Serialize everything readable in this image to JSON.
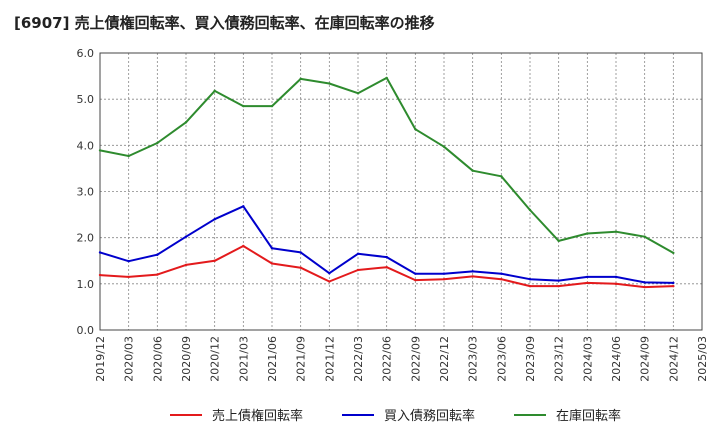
{
  "chart_data": {
    "type": "line",
    "title": "[6907]  売上債権回転率、買入債務回転率、在庫回転率の推移",
    "xlabel": "",
    "ylabel": "",
    "ylim": [
      0,
      6
    ],
    "yticks": [
      "0.0",
      "1.0",
      "2.0",
      "3.0",
      "4.0",
      "5.0",
      "6.0"
    ],
    "x_tick_labels": [
      "2019/12",
      "2020/03",
      "2020/06",
      "2020/09",
      "2020/12",
      "2021/03",
      "2021/06",
      "2021/09",
      "2021/12",
      "2022/03",
      "2022/06",
      "2022/09",
      "2022/12",
      "2023/03",
      "2023/06",
      "2023/09",
      "2023/12",
      "2024/03",
      "2024/06",
      "2024/09",
      "2024/12",
      "2025/03"
    ],
    "x": [
      "2019/12",
      "2020/03",
      "2020/06",
      "2020/09",
      "2020/12",
      "2021/03",
      "2021/06",
      "2021/09",
      "2021/12",
      "2022/03",
      "2022/06",
      "2022/09",
      "2022/12",
      "2023/03",
      "2023/06",
      "2023/09",
      "2023/12",
      "2024/03",
      "2024/06",
      "2024/09",
      "2024/12"
    ],
    "grid": true,
    "legend_position": "bottom",
    "series": [
      {
        "name": "売上債権回転率",
        "color": "#e31a1c",
        "values": [
          1.19,
          1.15,
          1.2,
          1.41,
          1.5,
          1.82,
          1.44,
          1.35,
          1.05,
          1.3,
          1.36,
          1.08,
          1.1,
          1.16,
          1.1,
          0.95,
          0.95,
          1.02,
          1.0,
          0.93,
          0.95
        ]
      },
      {
        "name": "買入債務回転率",
        "color": "#0000cc",
        "values": [
          1.68,
          1.49,
          1.63,
          2.02,
          2.4,
          2.68,
          1.77,
          1.68,
          1.23,
          1.65,
          1.58,
          1.22,
          1.22,
          1.27,
          1.22,
          1.1,
          1.07,
          1.15,
          1.15,
          1.03,
          1.02
        ]
      },
      {
        "name": "在庫回転率",
        "color": "#2e8b2e",
        "values": [
          3.89,
          3.77,
          4.05,
          4.5,
          5.18,
          4.85,
          4.85,
          5.44,
          5.34,
          5.13,
          5.46,
          4.35,
          3.97,
          3.45,
          3.33,
          2.6,
          1.93,
          2.09,
          2.13,
          2.02,
          1.67
        ]
      }
    ]
  }
}
